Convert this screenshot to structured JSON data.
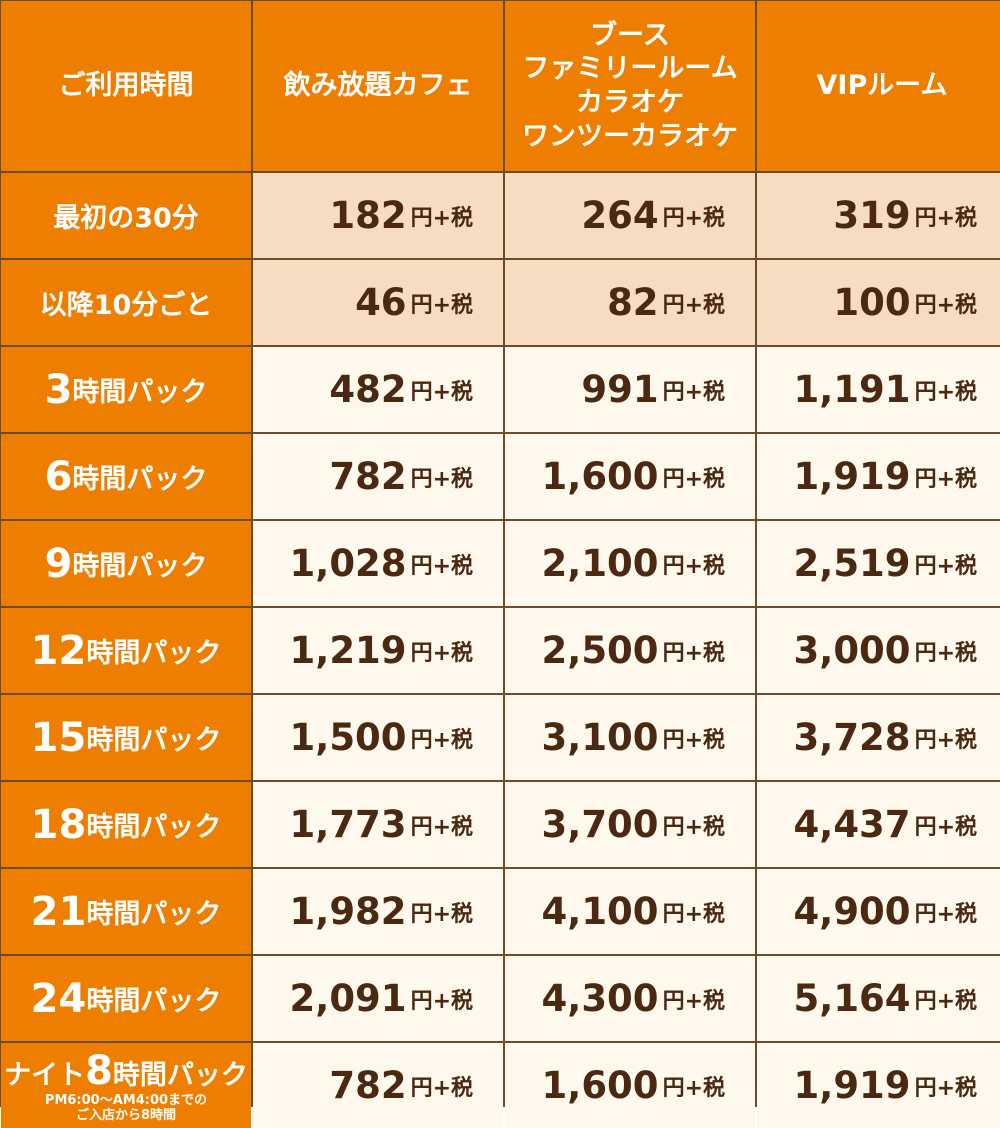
{
  "header": {
    "time_label": "ご利用時間",
    "col1": "飲み放題カフェ",
    "col2_lines": [
      "ブース",
      "ファミリールーム",
      "カラオケ",
      "ワンツーカラオケ"
    ],
    "col3": "VIPルーム"
  },
  "unit": "円+税",
  "rows": [
    {
      "label": "最初の30分",
      "prices": [
        "182",
        "264",
        "319"
      ]
    },
    {
      "label": "以降10分ごと",
      "prices": [
        "46",
        "82",
        "100"
      ]
    },
    {
      "label_num": "3",
      "label_suffix": "時間パック",
      "prices": [
        "482",
        "991",
        "1,191"
      ]
    },
    {
      "label_num": "6",
      "label_suffix": "時間パック",
      "prices": [
        "782",
        "1,600",
        "1,919"
      ]
    },
    {
      "label_num": "9",
      "label_suffix": "時間パック",
      "prices": [
        "1,028",
        "2,100",
        "2,519"
      ]
    },
    {
      "label_num": "12",
      "label_suffix": "時間パック",
      "prices": [
        "1,219",
        "2,500",
        "3,000"
      ]
    },
    {
      "label_num": "15",
      "label_suffix": "時間パック",
      "prices": [
        "1,500",
        "3,100",
        "3,728"
      ]
    },
    {
      "label_num": "18",
      "label_suffix": "時間パック",
      "prices": [
        "1,773",
        "3,700",
        "4,437"
      ]
    },
    {
      "label_num": "21",
      "label_suffix": "時間パック",
      "prices": [
        "1,982",
        "4,100",
        "4,900"
      ]
    },
    {
      "label_num": "24",
      "label_suffix": "時間パック",
      "prices": [
        "2,091",
        "4,300",
        "5,164"
      ]
    }
  ],
  "night": {
    "prefix": "ナイト",
    "num": "8",
    "suffix": "時間パック",
    "note_line1": "PM6:00～AM4:00までの",
    "note_line2": "ご入店から8時間",
    "prices": [
      "782",
      "1,600",
      "1,919"
    ]
  },
  "colors": {
    "header_orange": "#ee7e00",
    "tan_row": "#f6dcc0",
    "cream_row": "#fef9ec",
    "price_text": "#4a2812"
  }
}
